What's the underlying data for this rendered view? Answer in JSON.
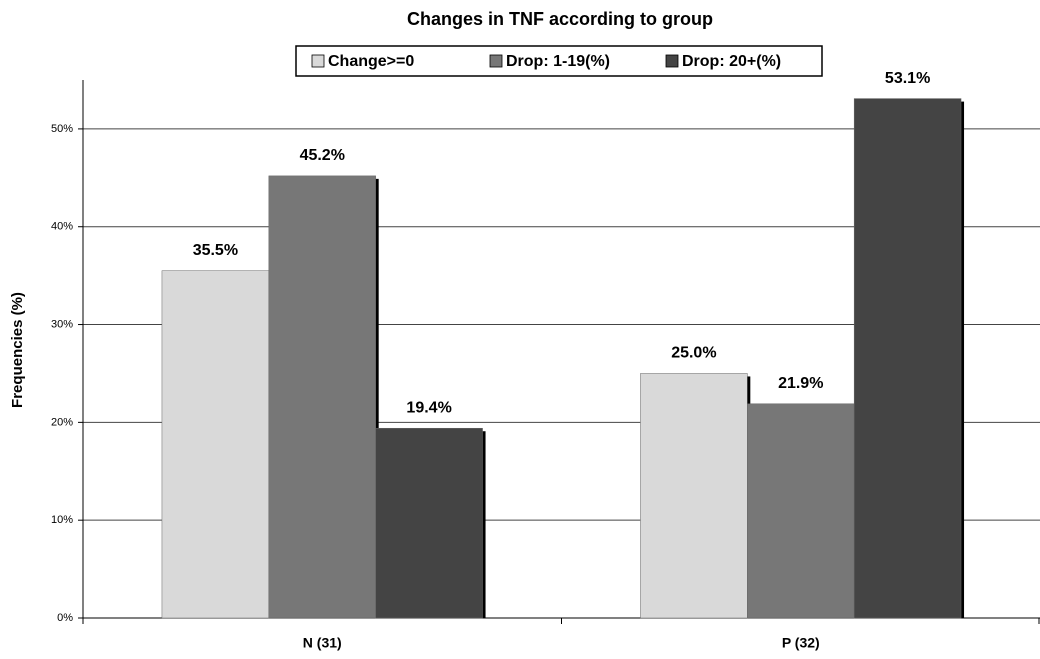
{
  "chart_data": {
    "type": "bar",
    "title": "Changes in TNF according to group",
    "y_label": "Frequencies (%)",
    "categories": [
      "N (31)",
      "P (32)"
    ],
    "series": [
      {
        "name": "Change>=0",
        "color": "#d9d9d9",
        "values": [
          35.5,
          25.0
        ],
        "value_labels": [
          "35.5%",
          "25.0%"
        ]
      },
      {
        "name": "Drop: 1-19(%)",
        "color": "#777777",
        "values": [
          45.2,
          21.9
        ],
        "value_labels": [
          "45.2%",
          "21.9%"
        ]
      },
      {
        "name": "Drop: 20+(%)",
        "color": "#444444",
        "values": [
          19.4,
          53.1
        ],
        "value_labels": [
          "19.4%",
          "53.1%"
        ]
      }
    ],
    "ylim": [
      0,
      55
    ],
    "yticks": [
      {
        "value": 0,
        "label": "0%"
      },
      {
        "value": 10,
        "label": "10%"
      },
      {
        "value": 20,
        "label": "20%"
      },
      {
        "value": 30,
        "label": "30%"
      },
      {
        "value": 40,
        "label": "40%"
      },
      {
        "value": 50,
        "label": "50%"
      }
    ],
    "grid": true,
    "legend": "top"
  }
}
